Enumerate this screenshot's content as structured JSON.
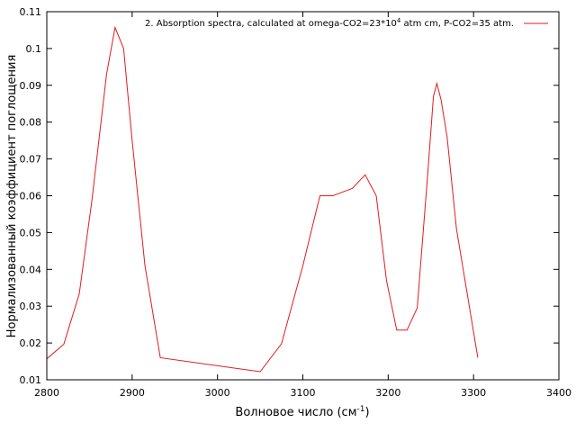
{
  "chart_data": {
    "type": "line",
    "xlabel": "Волновое число (см",
    "xlabel_sup": "-1",
    "xlabel_end": ")",
    "ylabel": "Нормализованный коэффициент поглощения",
    "xlim": [
      2800,
      3400
    ],
    "ylim": [
      0.01,
      0.11
    ],
    "x_ticks": [
      "2800",
      "2900",
      "3000",
      "3100",
      "3200",
      "3300",
      "3400"
    ],
    "y_ticks": [
      "0.01",
      "0.02",
      "0.03",
      "0.04",
      "0.05",
      "0.06",
      "0.07",
      "0.08",
      "0.09",
      "0.1",
      "0.11"
    ],
    "legend_position": "top-right",
    "colors": {
      "series": "#e31a1c"
    },
    "series": [
      {
        "name": "2. Absorption spectra, calculated at omega-CO2=23*10",
        "name_sup": "4",
        "name_end": " atm cm, P-CO2=35 atm.",
        "x": [
          2800,
          2820,
          2838,
          2853,
          2870,
          2880,
          2890,
          2900,
          2915,
          2933,
          3050,
          3075,
          3100,
          3120,
          3135,
          3158,
          3173,
          3186,
          3198,
          3210,
          3222,
          3234,
          3246,
          3253,
          3257,
          3262,
          3269,
          3280,
          3305
        ],
        "values": [
          0.0157,
          0.0197,
          0.0333,
          0.059,
          0.093,
          0.1057,
          0.1,
          0.075,
          0.041,
          0.016,
          0.0122,
          0.0198,
          0.041,
          0.06,
          0.06,
          0.062,
          0.0657,
          0.06,
          0.037,
          0.0235,
          0.0235,
          0.0295,
          0.065,
          0.087,
          0.0905,
          0.086,
          0.076,
          0.051,
          0.016
        ]
      }
    ]
  }
}
